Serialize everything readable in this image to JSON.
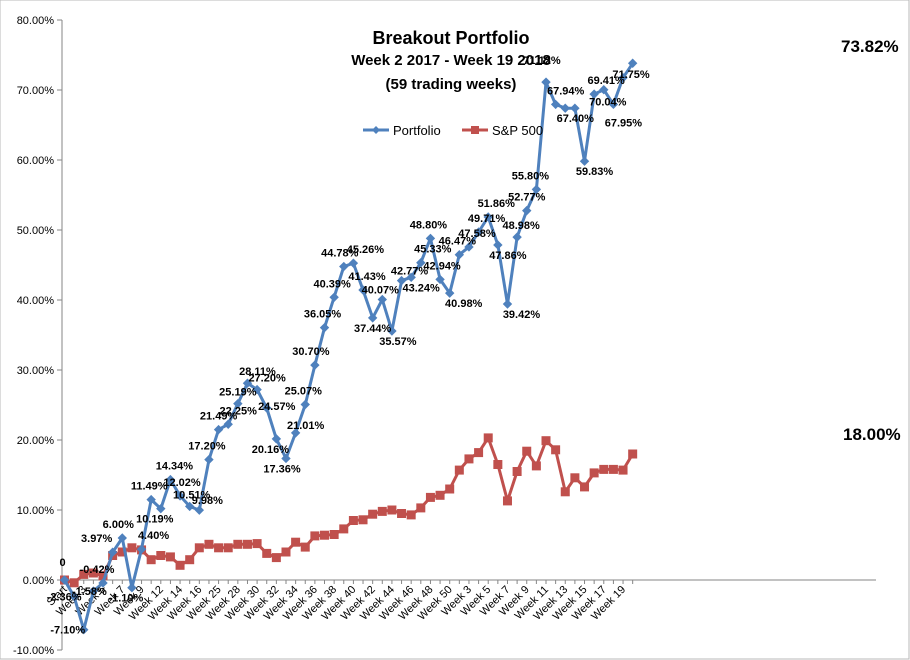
{
  "chart_data": {
    "type": "line",
    "title": "Breakout Portfolio",
    "subtitle": "Week 2 2017 - Week 19 2018",
    "subtitle2": "(59 trading weeks)",
    "ylim": [
      -10,
      80
    ],
    "y_ticks": [
      "-10.00%",
      "0.00%",
      "10.00%",
      "20.00%",
      "30.00%",
      "40.00%",
      "50.00%",
      "60.00%",
      "70.00%",
      "80.00%"
    ],
    "y_tick_values": [
      -10,
      0,
      10,
      20,
      30,
      40,
      50,
      60,
      70,
      80
    ],
    "x_tick_labels": [
      "Start",
      "Week 3",
      "Week 5",
      "Week 7",
      "Week 9",
      "Week 12",
      "Week 14",
      "Week 16",
      "Week 25",
      "Week 28",
      "Week 30",
      "Week 32",
      "Week 34",
      "Week 36",
      "Week 38",
      "Week 40",
      "Week 42",
      "Week 44",
      "Week 46",
      "Week 48",
      "Week 50",
      "Week 3",
      "Week 5",
      "Week 7",
      "Week 9",
      "Week 11",
      "Week 13",
      "Week 15",
      "Week 17",
      "Week 19"
    ],
    "x_tick_positions": [
      0,
      2,
      4,
      6,
      8,
      10,
      12,
      14,
      16,
      18,
      20,
      22,
      24,
      26,
      28,
      30,
      32,
      34,
      36,
      38,
      40,
      42,
      44,
      46,
      48,
      50,
      52,
      54,
      56,
      58
    ],
    "n_points": 60,
    "legend": [
      "Portfolio",
      "S&P 500"
    ],
    "legend_position": "top-center",
    "grid": "none",
    "series": [
      {
        "name": "Portfolio",
        "color": "#4f81bd",
        "marker": "diamond",
        "values": [
          0,
          -2.36,
          -7.1,
          -1.58,
          -0.42,
          3.97,
          6.0,
          -1.1,
          4.4,
          11.49,
          10.19,
          14.34,
          12.02,
          10.51,
          9.98,
          17.2,
          21.49,
          22.25,
          25.19,
          28.11,
          27.2,
          24.57,
          20.16,
          17.36,
          21.01,
          25.07,
          30.7,
          36.05,
          40.39,
          44.78,
          45.26,
          41.43,
          37.44,
          40.07,
          35.57,
          42.77,
          43.24,
          45.33,
          48.8,
          42.94,
          40.98,
          46.47,
          47.58,
          49.71,
          51.86,
          47.86,
          39.42,
          48.98,
          52.77,
          55.8,
          71.12,
          67.94,
          67.4,
          67.4,
          59.83,
          69.41,
          70.04,
          67.95,
          71.75,
          73.82
        ],
        "labels": [
          "0",
          "-2.36%",
          "-7.10%",
          "-1.58%",
          "-0.42%",
          "3.97%",
          "6.00%",
          "-1.10%",
          "4.40%",
          "11.49%",
          "10.19%",
          "14.34%",
          "12.02%",
          "10.51%",
          "9.98%",
          "17.20%",
          "21.49%",
          "22.25%",
          "25.19%",
          "28.11%",
          "27.20%",
          "24.57%",
          "20.16%",
          "17.36%",
          "21.01%",
          "25.07%",
          "30.70%",
          "36.05%",
          "40.39%",
          "44.78%",
          "45.26%",
          "41.43%",
          "37.44%",
          "40.07%",
          "35.57%",
          "42.77%",
          "43.24%",
          "45.33%",
          "48.80%",
          "42.94%",
          "40.98%",
          "46.47%",
          "47.58%",
          "49.71%",
          "51.86%",
          "47.86%",
          "39.42%",
          "48.98%",
          "52.77%",
          "55.80%",
          "71.12%",
          "67.94%",
          "67.40%",
          "",
          "59.83%",
          "69.41%",
          "70.04%",
          "67.95%",
          "71.75%",
          "73.82%"
        ]
      },
      {
        "name": "S&P 500",
        "color": "#c0504d",
        "marker": "square",
        "values": [
          0,
          -0.4,
          0.8,
          1.0,
          0.6,
          3.5,
          4.0,
          4.6,
          4.3,
          2.9,
          3.5,
          3.3,
          2.1,
          2.9,
          4.6,
          5.1,
          4.6,
          4.6,
          5.1,
          5.1,
          5.2,
          3.8,
          3.2,
          4.0,
          5.4,
          4.7,
          6.3,
          6.4,
          6.5,
          7.3,
          8.5,
          8.6,
          9.4,
          9.8,
          10.0,
          9.5,
          9.3,
          10.3,
          11.8,
          12.1,
          13.0,
          15.7,
          17.3,
          18.2,
          20.3,
          16.5,
          11.3,
          15.5,
          18.4,
          16.3,
          19.9,
          18.6,
          12.6,
          14.6,
          13.3,
          15.3,
          15.8,
          15.8,
          15.7,
          18.0
        ]
      }
    ],
    "end_labels": {
      "portfolio": "73.82%",
      "sp500": "18.00%"
    }
  }
}
